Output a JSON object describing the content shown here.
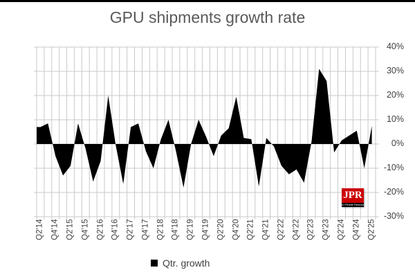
{
  "title": "GPU shipments growth rate",
  "legend": {
    "label": "Qtr. growth",
    "marker_color": "#000000"
  },
  "logo": {
    "text": "JPR",
    "subtext": "Jon Peddie Research",
    "bg": "#CC0000",
    "strip_bg": "#000000",
    "text_color": "#FFFFFF"
  },
  "colors": {
    "background": "#FFFFFF",
    "top_border": "#000000",
    "title_text": "#595959",
    "axis_text": "#3F3F3F",
    "gridline": "#C9C9C9",
    "series_fill": "#000000"
  },
  "chart_data": {
    "type": "area",
    "title": "GPU shipments growth rate",
    "xlabel": "",
    "ylabel": "",
    "ylim": [
      -30,
      40
    ],
    "y_tick_step": 10,
    "y_tick_labels": [
      "40%",
      "30%",
      "20%",
      "10%",
      "0%",
      "-10%",
      "-20%",
      "-30%"
    ],
    "grid": true,
    "legend_position": "bottom",
    "series_name": "Qtr. growth",
    "categories": [
      "Q2'14",
      "Q3'14",
      "Q4'14",
      "Q1'15",
      "Q2'15",
      "Q3'15",
      "Q4'15",
      "Q1'16",
      "Q2'16",
      "Q3'16",
      "Q4'16",
      "Q1'17",
      "Q2'17",
      "Q3'17",
      "Q4'17",
      "Q1'18",
      "Q2'18",
      "Q3'18",
      "Q4'18",
      "Q1'19",
      "Q2'19",
      "Q3'19",
      "Q4'19",
      "Q1'20",
      "Q2'20",
      "Q3'20",
      "Q4'20",
      "Q1'21",
      "Q2'21",
      "Q3'21",
      "Q4'21",
      "Q1'22",
      "Q2'22",
      "Q3'22",
      "Q4'22",
      "Q1'23",
      "Q2'23",
      "Q3'23",
      "Q4'23",
      "Q1'24",
      "Q2'24",
      "Q3'24",
      "Q4'24",
      "Q1'25",
      "Q2'25"
    ],
    "x_tick_labels": [
      "Q2'14",
      "Q4'14",
      "Q2'15",
      "Q4'15",
      "Q2'16",
      "Q4'16",
      "Q2'17",
      "Q4'17",
      "Q2'18",
      "Q4'18",
      "Q2'19",
      "Q4'19",
      "Q2'20",
      "Q4'20",
      "Q2'21",
      "Q4'21",
      "Q2'22",
      "Q4'22",
      "Q2'23",
      "Q4'23",
      "Q2'24",
      "Q4'24",
      "Q2'25"
    ],
    "values": [
      7,
      8.5,
      -5,
      -13,
      -9,
      8.5,
      -2,
      -15.5,
      -7,
      20,
      -0.5,
      -16.5,
      7,
      8.5,
      -3,
      -10,
      2,
      10,
      -3,
      -18,
      0,
      10,
      3,
      -5,
      3.5,
      6.5,
      19.5,
      2.5,
      2,
      -17.5,
      2.5,
      -1,
      -9,
      -12.5,
      -10.5,
      -16,
      1,
      31,
      26,
      -3.5,
      1.5,
      3.5,
      5.5,
      -10,
      7.5
    ]
  }
}
